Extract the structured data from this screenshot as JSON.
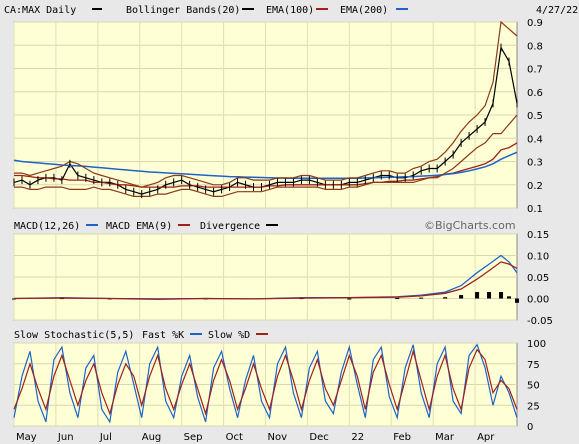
{
  "chart_data": [
    {
      "type": "line",
      "panel": "price",
      "symbol": "CA:MAX Daily",
      "date": "4/27/22",
      "watermark": "©BigCharts.com",
      "legend": [
        {
          "label": "CA:MAX Daily",
          "color": "#000000"
        },
        {
          "label": "Bollinger Bands(20)",
          "color": "#000000"
        },
        {
          "label": "EMA(100)",
          "color": "#a0201a"
        },
        {
          "label": "EMA(200)",
          "color": "#1e63c8"
        }
      ],
      "ylim": [
        0.1,
        0.9
      ],
      "y_ticks": [
        "0.9",
        "0.8",
        "0.7",
        "0.6",
        "0.5",
        "0.4",
        "0.3",
        "0.2",
        "0.1"
      ],
      "x": [
        0,
        4,
        8,
        12,
        16,
        20,
        24,
        28,
        32,
        36,
        40,
        44,
        48,
        52,
        56,
        60,
        64,
        68,
        72,
        76,
        80,
        84,
        88,
        92,
        96,
        100,
        104,
        108,
        112,
        116,
        120,
        124,
        128,
        132,
        136,
        140,
        144,
        148,
        152,
        156,
        160,
        164,
        168,
        172,
        176,
        180,
        184,
        188,
        192,
        196,
        200,
        204,
        208,
        212,
        216,
        220,
        224,
        228,
        232,
        236,
        240,
        244,
        248,
        252
      ],
      "series": [
        {
          "name": "CA:MAX Daily",
          "values": [
            0.21,
            0.22,
            0.2,
            0.22,
            0.23,
            0.23,
            0.22,
            0.29,
            0.24,
            0.23,
            0.22,
            0.21,
            0.21,
            0.2,
            0.18,
            0.17,
            0.16,
            0.17,
            0.18,
            0.2,
            0.21,
            0.22,
            0.2,
            0.19,
            0.18,
            0.17,
            0.18,
            0.19,
            0.21,
            0.2,
            0.19,
            0.19,
            0.2,
            0.21,
            0.21,
            0.21,
            0.22,
            0.22,
            0.21,
            0.2,
            0.2,
            0.2,
            0.21,
            0.21,
            0.22,
            0.23,
            0.24,
            0.24,
            0.23,
            0.23,
            0.24,
            0.26,
            0.27,
            0.27,
            0.3,
            0.33,
            0.38,
            0.41,
            0.44,
            0.47,
            0.55,
            0.79,
            0.73,
            0.55
          ]
        },
        {
          "name": "EMA(100)",
          "values": [
            0.24,
            0.24,
            0.235,
            0.23,
            0.23,
            0.225,
            0.225,
            0.22,
            0.22,
            0.22,
            0.21,
            0.21,
            0.205,
            0.2,
            0.2,
            0.195,
            0.19,
            0.19,
            0.19,
            0.19,
            0.19,
            0.195,
            0.195,
            0.195,
            0.19,
            0.19,
            0.19,
            0.19,
            0.19,
            0.19,
            0.19,
            0.19,
            0.195,
            0.195,
            0.2,
            0.2,
            0.2,
            0.2,
            0.2,
            0.2,
            0.2,
            0.2,
            0.2,
            0.2,
            0.205,
            0.21,
            0.21,
            0.215,
            0.215,
            0.22,
            0.22,
            0.225,
            0.23,
            0.235,
            0.245,
            0.25,
            0.26,
            0.27,
            0.28,
            0.29,
            0.31,
            0.35,
            0.36,
            0.38
          ]
        },
        {
          "name": "EMA(200)",
          "values": [
            0.305,
            0.3,
            0.297,
            0.294,
            0.291,
            0.288,
            0.285,
            0.283,
            0.281,
            0.279,
            0.276,
            0.273,
            0.27,
            0.267,
            0.264,
            0.261,
            0.258,
            0.255,
            0.253,
            0.251,
            0.249,
            0.247,
            0.245,
            0.243,
            0.241,
            0.239,
            0.237,
            0.235,
            0.234,
            0.233,
            0.232,
            0.231,
            0.23,
            0.229,
            0.228,
            0.228,
            0.228,
            0.228,
            0.228,
            0.228,
            0.228,
            0.228,
            0.228,
            0.228,
            0.229,
            0.23,
            0.231,
            0.232,
            0.233,
            0.234,
            0.235,
            0.237,
            0.239,
            0.241,
            0.244,
            0.248,
            0.253,
            0.26,
            0.268,
            0.277,
            0.29,
            0.31,
            0.325,
            0.34
          ]
        },
        {
          "name": "Upper band",
          "values": [
            0.25,
            0.25,
            0.24,
            0.25,
            0.26,
            0.27,
            0.28,
            0.3,
            0.29,
            0.27,
            0.25,
            0.24,
            0.23,
            0.22,
            0.21,
            0.2,
            0.19,
            0.2,
            0.21,
            0.23,
            0.24,
            0.24,
            0.23,
            0.22,
            0.21,
            0.2,
            0.2,
            0.21,
            0.23,
            0.23,
            0.22,
            0.22,
            0.22,
            0.23,
            0.23,
            0.23,
            0.24,
            0.24,
            0.23,
            0.22,
            0.22,
            0.22,
            0.23,
            0.23,
            0.24,
            0.25,
            0.26,
            0.26,
            0.25,
            0.25,
            0.27,
            0.28,
            0.3,
            0.31,
            0.34,
            0.38,
            0.43,
            0.47,
            0.5,
            0.54,
            0.64,
            0.9,
            0.87,
            0.84
          ]
        },
        {
          "name": "Lower band",
          "values": [
            0.19,
            0.19,
            0.18,
            0.18,
            0.19,
            0.19,
            0.19,
            0.18,
            0.18,
            0.18,
            0.19,
            0.18,
            0.18,
            0.17,
            0.16,
            0.15,
            0.15,
            0.15,
            0.16,
            0.16,
            0.17,
            0.18,
            0.18,
            0.17,
            0.16,
            0.15,
            0.15,
            0.16,
            0.17,
            0.17,
            0.17,
            0.17,
            0.18,
            0.19,
            0.19,
            0.19,
            0.19,
            0.19,
            0.19,
            0.18,
            0.18,
            0.18,
            0.19,
            0.19,
            0.2,
            0.21,
            0.21,
            0.21,
            0.21,
            0.21,
            0.21,
            0.22,
            0.23,
            0.23,
            0.25,
            0.27,
            0.3,
            0.33,
            0.36,
            0.38,
            0.42,
            0.42,
            0.46,
            0.5
          ]
        }
      ]
    },
    {
      "type": "line",
      "panel": "macd",
      "legend": [
        {
          "label": "MACD(12,26)",
          "color": "#1e63c8"
        },
        {
          "label": "MACD EMA(9)",
          "color": "#a0201a"
        },
        {
          "label": "Divergence",
          "color": "#000000"
        }
      ],
      "ylim": [
        -0.05,
        0.15
      ],
      "y_ticks": [
        "0.15",
        "0.10",
        "0.05",
        "0.00",
        "-0.05"
      ],
      "x": [
        0,
        24,
        48,
        72,
        96,
        120,
        144,
        168,
        192,
        204,
        216,
        224,
        232,
        238,
        244,
        248,
        252
      ],
      "series": [
        {
          "name": "MACD(12,26)",
          "values": [
            0.0,
            0.002,
            0.0,
            -0.002,
            0.0,
            -0.001,
            0.002,
            0.002,
            0.004,
            0.008,
            0.015,
            0.03,
            0.06,
            0.08,
            0.1,
            0.085,
            0.06
          ]
        },
        {
          "name": "MACD EMA(9)",
          "values": [
            0.0,
            0.001,
            0.0,
            -0.001,
            0.0,
            -0.001,
            0.001,
            0.002,
            0.003,
            0.006,
            0.012,
            0.022,
            0.045,
            0.065,
            0.085,
            0.08,
            0.07
          ]
        },
        {
          "name": "Divergence",
          "values": [
            0.0,
            0.001,
            0.0,
            -0.001,
            0.0,
            0.0,
            0.001,
            0.0,
            0.001,
            0.002,
            0.003,
            0.008,
            0.015,
            0.015,
            0.015,
            0.005,
            -0.01
          ]
        }
      ]
    },
    {
      "type": "line",
      "panel": "stochastic",
      "legend": [
        {
          "label": "Slow Stochastic(5,5)",
          "color": "#000000"
        },
        {
          "label": "Fast %K",
          "color": "#1e63c8"
        },
        {
          "label": "Slow %D",
          "color": "#a0201a"
        }
      ],
      "ylim": [
        0,
        100
      ],
      "y_ticks": [
        "100",
        "75",
        "50",
        "25",
        "0"
      ],
      "x_ticks": [
        "May",
        "Jun",
        "Jul",
        "Aug",
        "Sep",
        "Oct",
        "Nov",
        "Dec",
        "22",
        "Feb",
        "Mar",
        "Apr"
      ],
      "x": [
        0,
        4,
        8,
        12,
        16,
        20,
        24,
        28,
        32,
        36,
        40,
        44,
        48,
        52,
        56,
        60,
        64,
        68,
        72,
        76,
        80,
        84,
        88,
        92,
        96,
        100,
        104,
        108,
        112,
        116,
        120,
        124,
        128,
        132,
        136,
        140,
        144,
        148,
        152,
        156,
        160,
        164,
        168,
        172,
        176,
        180,
        184,
        188,
        192,
        196,
        200,
        204,
        208,
        212,
        216,
        220,
        224,
        228,
        232,
        236,
        240,
        244,
        248,
        252
      ],
      "series": [
        {
          "name": "Fast %K",
          "values": [
            10,
            60,
            90,
            30,
            5,
            80,
            95,
            40,
            10,
            70,
            85,
            20,
            5,
            65,
            90,
            50,
            10,
            75,
            95,
            30,
            10,
            60,
            85,
            35,
            5,
            70,
            90,
            45,
            10,
            55,
            85,
            30,
            10,
            75,
            95,
            40,
            10,
            70,
            90,
            30,
            15,
            65,
            95,
            50,
            10,
            80,
            95,
            35,
            10,
            70,
            98,
            40,
            10,
            75,
            95,
            30,
            15,
            85,
            98,
            70,
            25,
            60,
            40,
            10
          ]
        },
        {
          "name": "Slow %D",
          "values": [
            20,
            45,
            75,
            45,
            20,
            60,
            85,
            55,
            25,
            55,
            75,
            40,
            15,
            50,
            75,
            60,
            25,
            60,
            85,
            45,
            20,
            50,
            75,
            45,
            15,
            55,
            80,
            55,
            20,
            45,
            75,
            45,
            20,
            60,
            85,
            55,
            20,
            55,
            80,
            45,
            25,
            55,
            85,
            60,
            20,
            65,
            85,
            50,
            20,
            55,
            90,
            55,
            20,
            60,
            85,
            45,
            20,
            70,
            92,
            80,
            40,
            55,
            45,
            20
          ]
        }
      ]
    }
  ]
}
